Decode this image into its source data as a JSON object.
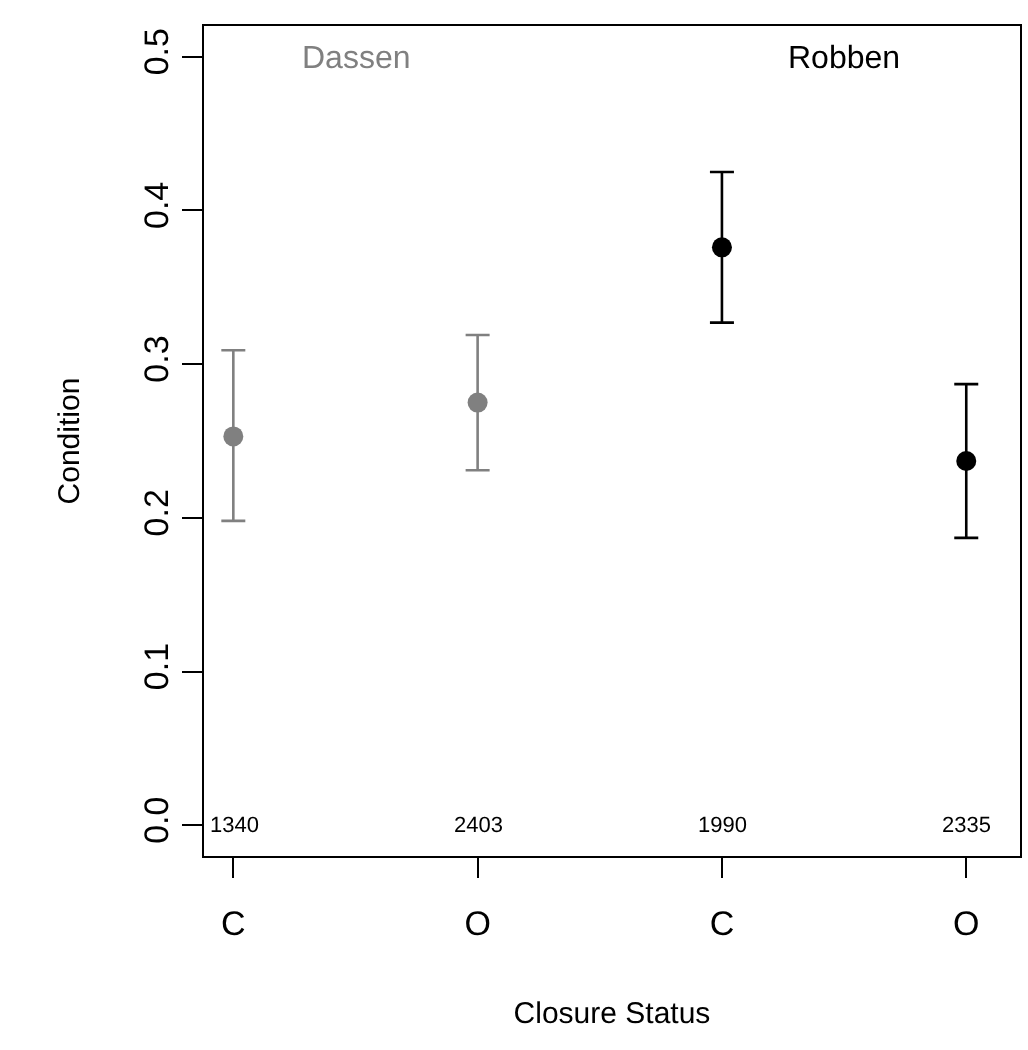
{
  "chart_data": {
    "type": "scatter",
    "xlabel": "Closure Status",
    "ylabel": "Condition",
    "categories": [
      "C",
      "O",
      "C",
      "O"
    ],
    "series": [
      {
        "name": "Dassen",
        "color": "#808080",
        "values": [
          0.253,
          0.275,
          null,
          null
        ],
        "errors": [
          [
            0.198,
            0.309
          ],
          [
            0.231,
            0.319
          ],
          null,
          null
        ]
      },
      {
        "name": "Robben",
        "color": "#000000",
        "values": [
          null,
          null,
          0.376,
          0.237
        ],
        "errors": [
          null,
          null,
          [
            0.327,
            0.425
          ],
          [
            0.187,
            0.287
          ]
        ]
      }
    ],
    "ylim": [
      -0.02,
      0.52
    ],
    "yticks": [
      {
        "value": 0,
        "label": "0.0"
      },
      0.1,
      0.2,
      0.3,
      0.4,
      0.5
    ],
    "grid": false,
    "legend": false,
    "marker": "circle",
    "annotations": [
      "1340",
      "2403",
      "1990",
      "2335"
    ]
  }
}
